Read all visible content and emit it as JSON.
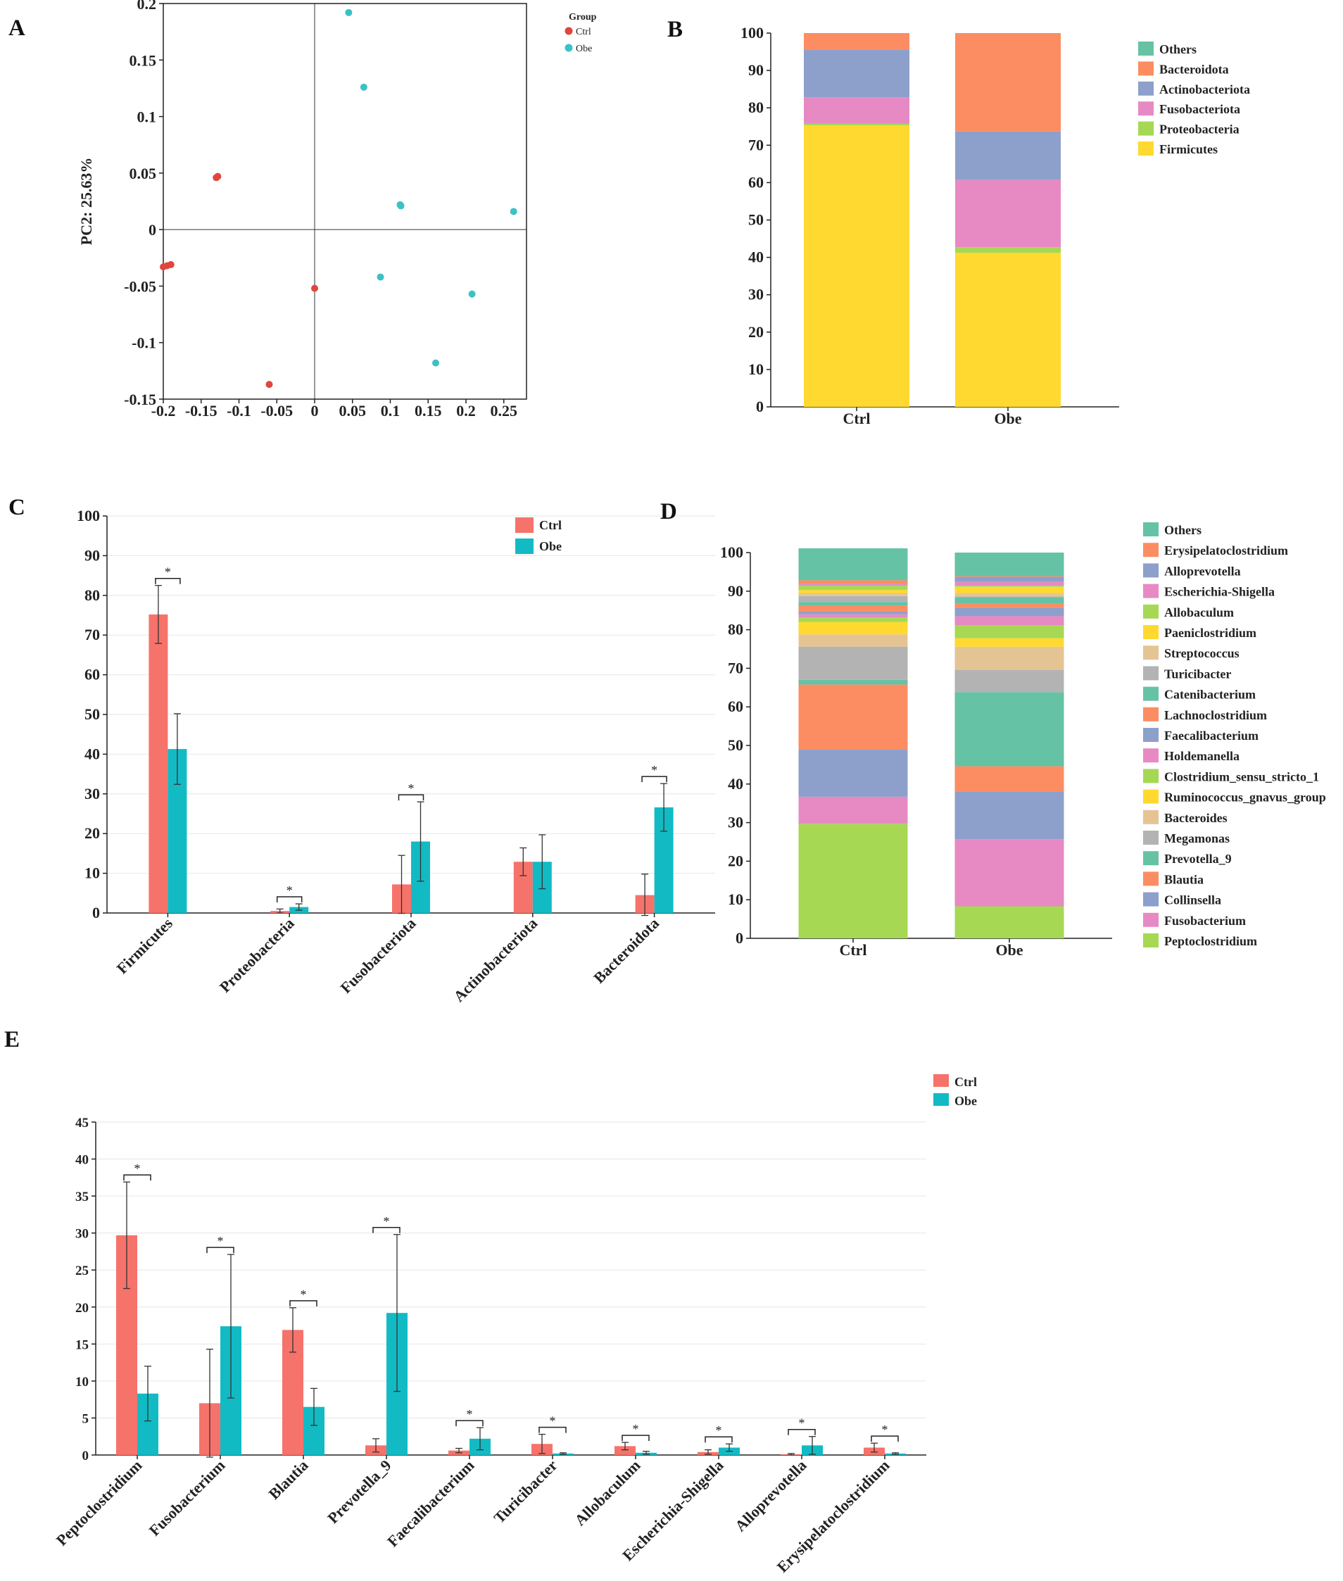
{
  "colors": {
    "ctrl": "#F5736B",
    "obe": "#12BBC4",
    "ctrl_point": "#E0463C",
    "obe_point": "#3CC1C4"
  },
  "chart_data": [
    {
      "id": "A",
      "type": "scatter",
      "panel_label": "A",
      "ylabel": "PC2: 25.63%",
      "xlim": [
        -0.2,
        0.28
      ],
      "ylim": [
        -0.15,
        0.2
      ],
      "x_ticks": [
        "-0.2",
        "-0.15",
        "-0.1",
        "-0.05",
        "0",
        "0.05",
        "0.1",
        "0.15",
        "0.2",
        "0.25"
      ],
      "x_tick_values": [
        -0.2,
        -0.15,
        -0.1,
        -0.05,
        0,
        0.05,
        0.1,
        0.15,
        0.2,
        0.25
      ],
      "y_ticks": [
        "-0.15",
        "-0.1",
        "-0.05",
        "0",
        "0.05",
        "0.1",
        "0.15",
        "0.2"
      ],
      "y_tick_values": [
        -0.15,
        -0.1,
        -0.05,
        0,
        0.05,
        0.1,
        0.15,
        0.2
      ],
      "legend_title": "Group",
      "series": [
        {
          "name": "Ctrl",
          "points": [
            [
              -0.13,
              0.046
            ],
            [
              -0.128,
              0.047
            ],
            [
              -0.2,
              -0.033
            ],
            [
              -0.195,
              -0.032
            ],
            [
              -0.19,
              -0.031
            ],
            [
              0,
              -0.052
            ],
            [
              -0.06,
              -0.137
            ]
          ]
        },
        {
          "name": "Obe",
          "points": [
            [
              0.045,
              0.192
            ],
            [
              0.065,
              0.126
            ],
            [
              0.113,
              0.022
            ],
            [
              0.114,
              0.021
            ],
            [
              0.263,
              0.016
            ],
            [
              0.087,
              -0.042
            ],
            [
              0.208,
              -0.057
            ],
            [
              0.16,
              -0.118
            ]
          ]
        }
      ]
    },
    {
      "id": "B",
      "type": "bar",
      "stacked": true,
      "panel_label": "B",
      "categories": [
        "Ctrl",
        "Obe"
      ],
      "ylim": [
        0,
        100
      ],
      "y_ticks": [
        "0",
        "10",
        "20",
        "30",
        "40",
        "50",
        "60",
        "70",
        "80",
        "90",
        "100"
      ],
      "series": [
        {
          "name": "Firmicutes",
          "color": "#FFD92F",
          "values": [
            75.3,
            41.2
          ]
        },
        {
          "name": "Proteobacteria",
          "color": "#A6D854",
          "values": [
            0.5,
            1.5
          ]
        },
        {
          "name": "Fusobacteriota",
          "color": "#E78AC3",
          "values": [
            7.0,
            18.0
          ]
        },
        {
          "name": "Actinobacteriota",
          "color": "#8DA0CB",
          "values": [
            12.8,
            13.0
          ]
        },
        {
          "name": "Bacteroidota",
          "color": "#FC8D62",
          "values": [
            4.4,
            26.3
          ]
        },
        {
          "name": "Others",
          "color": "#66C2A5",
          "values": [
            0.0,
            0.0
          ]
        }
      ],
      "legend": [
        "Others",
        "Bacteroidota",
        "Actinobacteriota",
        "Fusobacteriota",
        "Proteobacteria",
        "Firmicutes"
      ]
    },
    {
      "id": "C",
      "type": "bar",
      "panel_label": "C",
      "categories": [
        "Firmicutes",
        "Proteobacteria",
        "Fusobacteriota",
        "Actinobacteriota",
        "Bacteroidota"
      ],
      "ylim": [
        0,
        100
      ],
      "y_ticks": [
        "0",
        "10",
        "20",
        "30",
        "40",
        "50",
        "60",
        "70",
        "80",
        "90",
        "100"
      ],
      "series": [
        {
          "name": "Ctrl",
          "values": [
            75.2,
            0.5,
            7.2,
            12.9,
            4.5
          ],
          "errors": [
            7.3,
            0.5,
            7.3,
            3.5,
            5.3
          ]
        },
        {
          "name": "Obe",
          "values": [
            41.3,
            1.5,
            18.0,
            12.9,
            26.6
          ],
          "errors": [
            8.9,
            0.8,
            10.0,
            6.8,
            6.0
          ]
        }
      ],
      "significant": [
        true,
        true,
        true,
        false,
        true
      ],
      "sig_label": "*"
    },
    {
      "id": "D",
      "type": "bar",
      "stacked": true,
      "panel_label": "D",
      "categories": [
        "Ctrl",
        "Obe"
      ],
      "ylim": [
        0,
        100
      ],
      "y_ticks": [
        "0",
        "10",
        "20",
        "30",
        "40",
        "50",
        "60",
        "70",
        "80",
        "90",
        "100"
      ],
      "series": [
        {
          "name": "Peptoclostridium",
          "color": "#A6D854",
          "values": [
            29.7,
            8.3
          ]
        },
        {
          "name": "Fusobacterium",
          "color": "#E78AC3",
          "values": [
            7.0,
            17.4
          ]
        },
        {
          "name": "Collinsella",
          "color": "#8DA0CB",
          "values": [
            12.2,
            12.4
          ]
        },
        {
          "name": "Blautia",
          "color": "#FC8D62",
          "values": [
            16.9,
            6.5
          ]
        },
        {
          "name": "Prevotella_9",
          "color": "#66C2A5",
          "values": [
            1.2,
            19.2
          ]
        },
        {
          "name": "Megamonas",
          "color": "#B3B3B3",
          "values": [
            8.6,
            5.8
          ]
        },
        {
          "name": "Bacteroides",
          "color": "#E5C494",
          "values": [
            3.2,
            6.0
          ]
        },
        {
          "name": "Ruminococcus_gnavus_group",
          "color": "#FFD92F",
          "values": [
            3.2,
            2.2
          ]
        },
        {
          "name": "Clostridium_sensu_stricto_1",
          "color": "#A6D854",
          "values": [
            1.2,
            3.4
          ]
        },
        {
          "name": "Holdemanella",
          "color": "#E78AC3",
          "values": [
            0.8,
            2.3
          ]
        },
        {
          "name": "Faecalibacterium",
          "color": "#8DA0CB",
          "values": [
            0.8,
            2.2
          ]
        },
        {
          "name": "Lachnoclostridium",
          "color": "#FC8D62",
          "values": [
            1.5,
            1.0
          ]
        },
        {
          "name": "Catenibacterium",
          "color": "#66C2A5",
          "values": [
            0.9,
            1.7
          ]
        },
        {
          "name": "Turicibacter",
          "color": "#B3B3B3",
          "values": [
            1.5,
            0.2
          ]
        },
        {
          "name": "Streptococcus",
          "color": "#E5C494",
          "values": [
            0.8,
            0.9
          ]
        },
        {
          "name": "Paeniclostridium",
          "color": "#FFD92F",
          "values": [
            0.8,
            1.6
          ]
        },
        {
          "name": "Allobaculum",
          "color": "#A6D854",
          "values": [
            1.1,
            0.3
          ]
        },
        {
          "name": "Escherichia-Shigella",
          "color": "#E78AC3",
          "values": [
            0.4,
            1.0
          ]
        },
        {
          "name": "Alloprevotella",
          "color": "#8DA0CB",
          "values": [
            0.1,
            1.3
          ]
        },
        {
          "name": "Erysipelatoclostridium",
          "color": "#FC8D62",
          "values": [
            0.9,
            0.2
          ]
        },
        {
          "name": "Others",
          "color": "#66C2A5",
          "values": [
            8.3,
            6.1
          ]
        }
      ],
      "legend": [
        "Others",
        "Erysipelatoclostridium",
        "Alloprevotella",
        "Escherichia-Shigella",
        "Allobaculum",
        "Paeniclostridium",
        "Streptococcus",
        "Turicibacter",
        "Catenibacterium",
        "Lachnoclostridium",
        "Faecalibacterium",
        "Holdemanella",
        "Clostridium_sensu_stricto_1",
        "Ruminococcus_gnavus_group",
        "Bacteroides",
        "Megamonas",
        "Prevotella_9",
        "Blautia",
        "Collinsella",
        "Fusobacterium",
        "Peptoclostridium"
      ]
    },
    {
      "id": "E",
      "type": "bar",
      "panel_label": "E",
      "categories": [
        "Peptoclostridium",
        "Fusobacterium",
        "Blautia",
        "Prevotella_9",
        "Faecalibacterium",
        "Turicibacter",
        "Allobaculum",
        "Escherichia-Shigella",
        "Alloprevotella",
        "Erysipelatoclostridium"
      ],
      "ylim": [
        0,
        45
      ],
      "y_ticks": [
        "0",
        "5",
        "10",
        "15",
        "20",
        "25",
        "30",
        "35",
        "40",
        "45"
      ],
      "series": [
        {
          "name": "Ctrl",
          "values": [
            29.7,
            7.0,
            16.9,
            1.3,
            0.6,
            1.5,
            1.2,
            0.4,
            0.1,
            1.0
          ],
          "errors": [
            7.2,
            7.3,
            3.0,
            0.9,
            0.3,
            1.3,
            0.5,
            0.3,
            0.1,
            0.6
          ]
        },
        {
          "name": "Obe",
          "values": [
            8.3,
            17.4,
            6.5,
            19.2,
            2.2,
            0.2,
            0.3,
            1.0,
            1.3,
            0.2
          ],
          "errors": [
            3.7,
            9.7,
            2.5,
            10.6,
            1.5,
            0.1,
            0.2,
            0.5,
            1.2,
            0.1
          ]
        }
      ],
      "significant": [
        true,
        true,
        true,
        true,
        true,
        true,
        true,
        true,
        true,
        true
      ],
      "sig_label": "*"
    }
  ]
}
